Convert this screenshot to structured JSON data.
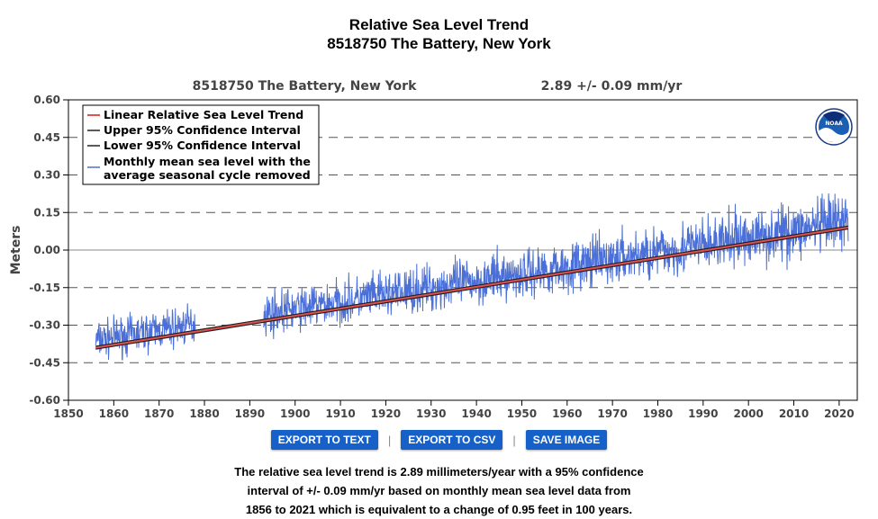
{
  "title": {
    "line1": "Relative Sea Level Trend",
    "line2": "8518750 The Battery, New York"
  },
  "buttons": {
    "export_text": "EXPORT TO TEXT",
    "export_csv": "EXPORT TO CSV",
    "save_image": "SAVE IMAGE",
    "separator": "|"
  },
  "description": {
    "line1": "The relative sea level trend is 2.89 millimeters/year with a 95% confidence",
    "line2": "interval of +/- 0.09 mm/yr based on monthly mean sea level data from",
    "line3": "1856 to 2021 which is equivalent to a change of 0.95 feet in 100 years."
  },
  "logo": {
    "text": "NOAA"
  },
  "colors": {
    "trend": "#e05050",
    "ci": "#222222",
    "monthly": "#4a6fd8",
    "button": "#1660c9"
  },
  "chart_data": {
    "type": "line",
    "station_label": "8518750 The Battery, New York",
    "trend_label": "2.89 +/-  0.09 mm/yr",
    "ylabel": "Meters",
    "xlabel": "",
    "xlim": [
      1850,
      2024
    ],
    "ylim": [
      -0.6,
      0.6
    ],
    "x_ticks": [
      "1850",
      "1860",
      "1870",
      "1880",
      "1890",
      "1900",
      "1910",
      "1920",
      "1930",
      "1940",
      "1950",
      "1960",
      "1970",
      "1980",
      "1990",
      "2000",
      "2010",
      "2020"
    ],
    "y_ticks": [
      "-0.60",
      "-0.45",
      "-0.30",
      "-0.15",
      "0.00",
      "0.15",
      "0.30",
      "0.45",
      "0.60"
    ],
    "grid": "horizontal dashed",
    "legend_position": "top-left",
    "legend": [
      "Linear Relative Sea Level Trend",
      "Upper 95% Confidence Interval",
      "Lower 95% Confidence Interval",
      "Monthly mean sea level with the",
      "average seasonal cycle removed"
    ],
    "trend_line": {
      "x": [
        1856,
        2022
      ],
      "y": [
        -0.39,
        0.09
      ]
    },
    "upper_ci": {
      "x": [
        1856,
        2022
      ],
      "y": [
        -0.385,
        0.095
      ]
    },
    "lower_ci": {
      "x": [
        1856,
        2022
      ],
      "y": [
        -0.395,
        0.085
      ]
    },
    "monthly_segments": [
      {
        "x_start": 1856,
        "x_end": 1878
      },
      {
        "x_start": 1893,
        "x_end": 2022
      }
    ],
    "monthly_envelope": {
      "x": [
        1856,
        2022
      ],
      "low": [
        -0.47,
        -0.06
      ],
      "high": [
        -0.25,
        0.28
      ]
    }
  }
}
